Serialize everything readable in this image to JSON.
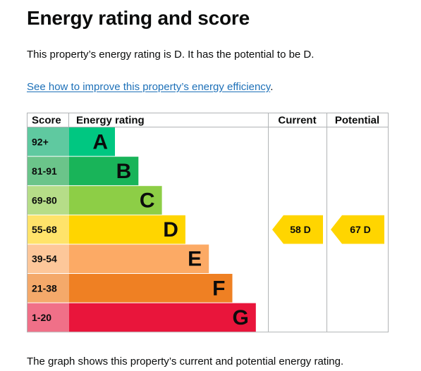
{
  "title": "Energy rating and score",
  "summary": "This property’s energy rating is D. It has the potential to be D.",
  "improve_link": "See how to improve this property’s energy efficiency",
  "improve_suffix": ".",
  "footnote": "The graph shows this property’s current and potential energy rating.",
  "table": {
    "headers": {
      "score": "Score",
      "rating": "Energy rating",
      "current": "Current",
      "potential": "Potential"
    },
    "bands": [
      {
        "score": "92+",
        "letter": "A",
        "color": "#00c781",
        "score_bg": "#5fc9a0"
      },
      {
        "score": "81-91",
        "letter": "B",
        "color": "#19b459",
        "score_bg": "#6bc48a"
      },
      {
        "score": "69-80",
        "letter": "C",
        "color": "#8dce46",
        "score_bg": "#b6dd88"
      },
      {
        "score": "55-68",
        "letter": "D",
        "color": "#ffd500",
        "score_bg": "#ffe36a"
      },
      {
        "score": "39-54",
        "letter": "E",
        "color": "#fcaa65",
        "score_bg": "#fdc79a"
      },
      {
        "score": "21-38",
        "letter": "F",
        "color": "#ef8023",
        "score_bg": "#f4a96a"
      },
      {
        "score": "1-20",
        "letter": "G",
        "color": "#e9153b",
        "score_bg": "#f07088"
      }
    ],
    "current": {
      "value": "58",
      "letter": "D",
      "band_index": 3,
      "color": "#ffd500"
    },
    "potential": {
      "value": "67",
      "letter": "D",
      "band_index": 3,
      "color": "#ffd500"
    }
  }
}
